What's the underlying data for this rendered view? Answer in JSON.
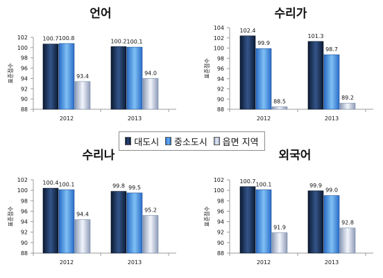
{
  "legend": {
    "items": [
      "대도시",
      "중소도시",
      "읍면 지역"
    ]
  },
  "chart_data": [
    {
      "type": "bar",
      "title": "언어",
      "ylabel": "표준점수",
      "categories": [
        "2012",
        "2013"
      ],
      "ylim": [
        88,
        102
      ],
      "yticks": [
        88,
        90,
        92,
        94,
        96,
        98,
        100,
        102
      ],
      "series": [
        {
          "name": "대도시",
          "values": [
            100.7,
            100.2
          ]
        },
        {
          "name": "중소도시",
          "values": [
            100.8,
            100.1
          ]
        },
        {
          "name": "읍면 지역",
          "values": [
            93.4,
            94.0
          ]
        }
      ],
      "data_labels": [
        [
          "100.7",
          "100.2"
        ],
        [
          "100.8",
          "100.1"
        ],
        [
          "93.4",
          "94.0"
        ]
      ],
      "grid": false
    },
    {
      "type": "bar",
      "title": "수리가",
      "ylabel": "표준점수",
      "categories": [
        "2012",
        "2013"
      ],
      "ylim": [
        88,
        104
      ],
      "yticks": [
        88,
        90,
        92,
        94,
        96,
        98,
        100,
        102,
        104
      ],
      "series": [
        {
          "name": "대도시",
          "values": [
            102.4,
            101.3
          ]
        },
        {
          "name": "중소도시",
          "values": [
            99.9,
            98.7
          ]
        },
        {
          "name": "읍면 지역",
          "values": [
            88.5,
            89.2
          ]
        }
      ],
      "data_labels": [
        [
          "102.4",
          "101.3"
        ],
        [
          "99.9",
          "98.7"
        ],
        [
          "88.5",
          "89.2"
        ]
      ],
      "grid": false
    },
    {
      "type": "bar",
      "title": "수리나",
      "ylabel": "표준점수",
      "categories": [
        "2012",
        "2013"
      ],
      "ylim": [
        88,
        102
      ],
      "yticks": [
        88,
        90,
        92,
        94,
        96,
        98,
        100,
        102
      ],
      "series": [
        {
          "name": "대도시",
          "values": [
            100.4,
            99.8
          ]
        },
        {
          "name": "중소도시",
          "values": [
            100.1,
            99.5
          ]
        },
        {
          "name": "읍면 지역",
          "values": [
            94.4,
            95.2
          ]
        }
      ],
      "data_labels": [
        [
          "100.4",
          "99.8"
        ],
        [
          "100.1",
          "99.5"
        ],
        [
          "94.4",
          "95.2"
        ]
      ],
      "grid": false
    },
    {
      "type": "bar",
      "title": "외국어",
      "ylabel": "표준점수",
      "categories": [
        "2012",
        "2013"
      ],
      "ylim": [
        88,
        102
      ],
      "yticks": [
        88,
        90,
        92,
        94,
        96,
        98,
        100,
        102
      ],
      "series": [
        {
          "name": "대도시",
          "values": [
            100.7,
            99.9
          ]
        },
        {
          "name": "중소도시",
          "values": [
            100.1,
            99.0
          ]
        },
        {
          "name": "읍면 지역",
          "values": [
            91.9,
            92.8
          ]
        }
      ],
      "data_labels": [
        [
          "100.7",
          "99.9"
        ],
        [
          "100.1",
          "99.0"
        ],
        [
          "91.9",
          "92.8"
        ]
      ],
      "grid": false
    }
  ],
  "colors": {
    "series_dark": [
      "#0b1a33",
      "#2a6cc7",
      "#8e9cb8"
    ],
    "series_light": [
      "#3a5a8c",
      "#7fc0f5",
      "#f2f5fb"
    ],
    "axis": "#9a9a9a",
    "text": "#111111"
  }
}
